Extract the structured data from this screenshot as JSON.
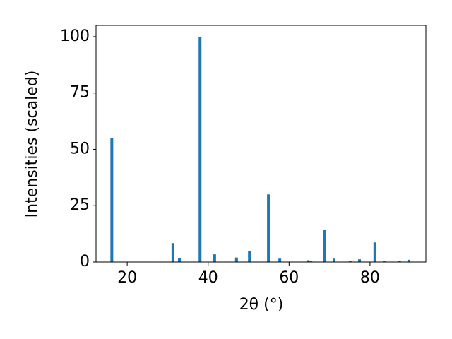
{
  "chart_data": {
    "type": "bar",
    "xlabel": "2θ (°)",
    "ylabel": "Intensities (scaled)",
    "x": [
      16.2,
      31.3,
      32.9,
      38.0,
      41.6,
      47.0,
      50.2,
      54.9,
      57.7,
      64.7,
      65.4,
      68.7,
      71.1,
      75.1,
      77.4,
      81.2,
      83.5,
      87.3,
      89.6
    ],
    "values": [
      55,
      8.4,
      1.8,
      100,
      3.4,
      2,
      5,
      30,
      1.5,
      0.8,
      0.3,
      14.3,
      1.5,
      0.4,
      1.2,
      8.7,
      0.3,
      0.6,
      1
    ],
    "color": "#1f77b4",
    "xlim": [
      12.3,
      93.8
    ],
    "ylim": [
      0,
      105
    ],
    "xticks": [
      20,
      40,
      60,
      80
    ],
    "yticks": [
      0,
      25,
      50,
      75,
      100
    ]
  }
}
